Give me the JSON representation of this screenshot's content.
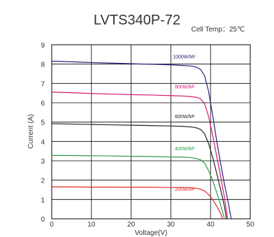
{
  "chart_data": {
    "type": "line",
    "title": "LVTS340P-72",
    "subtitle": "Cell Temp：25℃",
    "xlabel": "Voltage(V)",
    "ylabel": "Current (A)",
    "xlim": [
      0,
      50
    ],
    "ylim": [
      0,
      9
    ],
    "xticks": [
      "0",
      "10",
      "20",
      "30",
      "40",
      "50"
    ],
    "yticks": [
      "0",
      "1",
      "2",
      "3",
      "4",
      "5",
      "6",
      "7",
      "8",
      "9"
    ],
    "grid": true,
    "series": [
      {
        "name": "1000W/M²",
        "color": "#27207a",
        "label_at": [
          30.5,
          8.3
        ],
        "x": [
          0,
          5,
          10,
          15,
          20,
          25,
          30,
          33,
          35,
          36.5,
          37.5,
          38.5,
          39.5,
          40.5,
          41.5,
          42.5,
          43.5,
          44.5,
          45.2
        ],
        "y": [
          8.15,
          8.12,
          8.08,
          8.05,
          8.02,
          7.99,
          7.96,
          7.93,
          7.9,
          7.84,
          7.72,
          7.4,
          6.6,
          5.4,
          4.1,
          2.9,
          1.8,
          0.8,
          0
        ]
      },
      {
        "name": "800W/M²",
        "color": "#d6186f",
        "label_at": [
          31,
          6.75
        ],
        "x": [
          0,
          5,
          10,
          15,
          20,
          25,
          30,
          33,
          35,
          36.5,
          37.5,
          38.5,
          39.5,
          40.5,
          41.5,
          42.5,
          43.5,
          44.3
        ],
        "y": [
          6.55,
          6.52,
          6.48,
          6.45,
          6.42,
          6.4,
          6.37,
          6.35,
          6.32,
          6.28,
          6.2,
          5.95,
          5.3,
          4.35,
          3.3,
          2.25,
          1.1,
          0
        ]
      },
      {
        "name": "600W/M²",
        "color": "#222222",
        "label_at": [
          31,
          5.2
        ],
        "x": [
          0,
          5,
          10,
          15,
          20,
          25,
          30,
          33,
          35,
          36.5,
          37.5,
          38.5,
          39.5,
          40.5,
          41.5,
          42.5,
          43.5,
          44
        ],
        "y": [
          4.92,
          4.9,
          4.88,
          4.86,
          4.84,
          4.82,
          4.8,
          4.78,
          4.75,
          4.7,
          4.62,
          4.4,
          3.9,
          3.2,
          2.4,
          1.55,
          0.65,
          0
        ]
      },
      {
        "name": "400W/M²",
        "color": "#2f9a4a",
        "label_at": [
          31,
          3.55
        ],
        "x": [
          0,
          5,
          10,
          15,
          20,
          25,
          30,
          33,
          35,
          36.5,
          37.5,
          38.5,
          39.5,
          40.5,
          41.5,
          42.5,
          43.5
        ],
        "y": [
          3.28,
          3.27,
          3.26,
          3.25,
          3.23,
          3.22,
          3.2,
          3.19,
          3.17,
          3.12,
          3.05,
          2.88,
          2.5,
          2.0,
          1.4,
          0.75,
          0
        ]
      },
      {
        "name": "200W/M²",
        "color": "#e02b2b",
        "label_at": [
          31,
          1.45
        ],
        "x": [
          0,
          5,
          10,
          15,
          20,
          25,
          30,
          33,
          35,
          36.5,
          37.5,
          38.5,
          39.5,
          40.5,
          41.5,
          42.5,
          43
        ],
        "y": [
          1.65,
          1.65,
          1.64,
          1.64,
          1.63,
          1.63,
          1.62,
          1.62,
          1.61,
          1.58,
          1.53,
          1.44,
          1.26,
          1.0,
          0.68,
          0.3,
          0
        ]
      }
    ]
  }
}
